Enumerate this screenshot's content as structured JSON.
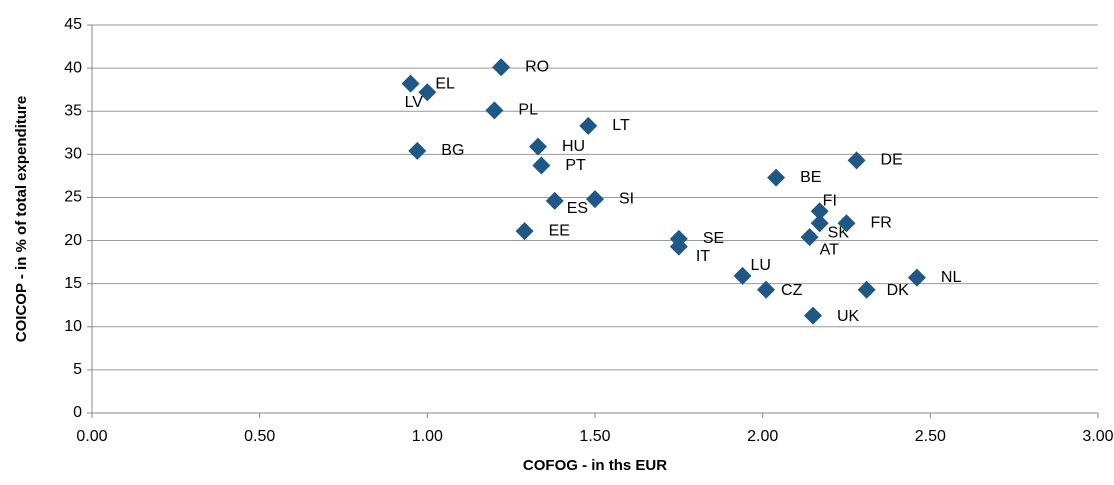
{
  "chart_data": {
    "type": "scatter",
    "x_label": "COFOG - in ths EUR",
    "y_label": "COICOP - in % of total expenditure",
    "point_labels": [
      "RO",
      "EL",
      "LV",
      "PL",
      "LT",
      "HU",
      "BG",
      "PT",
      "DE",
      "BE",
      "ES",
      "SI",
      "FI",
      "SK",
      "FR",
      "EE",
      "SE",
      "AT",
      "IT",
      "LU",
      "NL",
      "CZ",
      "DK",
      "UK"
    ],
    "x": [
      1.22,
      1.0,
      0.95,
      1.2,
      1.48,
      1.33,
      0.97,
      1.34,
      2.28,
      2.04,
      1.38,
      1.5,
      2.17,
      2.17,
      2.25,
      1.29,
      1.75,
      2.14,
      1.75,
      1.94,
      2.46,
      2.01,
      2.31,
      2.15
    ],
    "values": [
      40.1,
      37.2,
      38.2,
      35.1,
      33.3,
      30.9,
      30.4,
      28.7,
      29.3,
      27.3,
      24.6,
      24.8,
      23.4,
      22.0,
      22.0,
      21.1,
      20.2,
      20.4,
      19.3,
      15.9,
      15.7,
      14.3,
      14.3,
      11.3
    ],
    "color": "#1f5787",
    "xlim": [
      0,
      3
    ],
    "xticks": [
      {
        "value": 0,
        "label": "0.00"
      },
      {
        "value": 0.5,
        "label": "0.50"
      },
      {
        "value": 1,
        "label": "1.00"
      },
      {
        "value": 1.5,
        "label": "1.50"
      },
      {
        "value": 2,
        "label": "2.00"
      },
      {
        "value": 2.5,
        "label": "2.50"
      },
      {
        "value": 3,
        "label": "3.00"
      }
    ],
    "ylim": [
      0,
      45
    ],
    "yticks": [
      0,
      5,
      10,
      15,
      20,
      25,
      30,
      35,
      40,
      45
    ],
    "grid": true
  }
}
